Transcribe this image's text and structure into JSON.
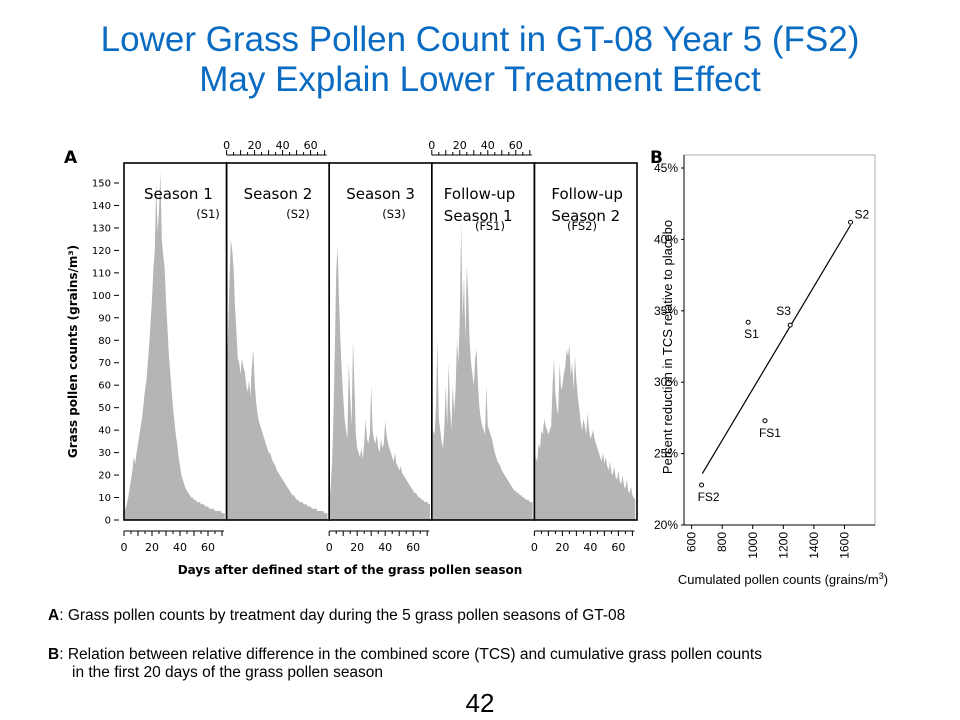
{
  "title": {
    "line1": "Lower Grass Pollen Count in GT-08 Year 5 (FS2)",
    "line2": "May Explain Lower Treatment Effect"
  },
  "colors": {
    "title": "#0a6bc2",
    "area_fill": "#b5b5b5",
    "frame": "#000000"
  },
  "chart_data": [
    {
      "panel_label": "A",
      "type": "area",
      "ylabel": "Grass pollen counts (grains/m³)",
      "xlabel": "Days after defined start of the grass pollen season",
      "yticks": [
        0,
        10,
        20,
        30,
        40,
        50,
        60,
        70,
        80,
        90,
        100,
        110,
        120,
        130,
        140,
        150
      ],
      "ylim": [
        0,
        155
      ],
      "xticks": [
        0,
        20,
        40,
        60
      ],
      "xlim": [
        0,
        73
      ],
      "grid": false,
      "series": [
        {
          "name": "Season 1",
          "code": "(S1)",
          "label": [
            "Season 1"
          ],
          "values": [
            3,
            5,
            7,
            10,
            14,
            18,
            22,
            28,
            25,
            30,
            34,
            38,
            42,
            46,
            52,
            58,
            62,
            70,
            78,
            88,
            98,
            112,
            120,
            150,
            128,
            138,
            155,
            125,
            118,
            112,
            98,
            86,
            74,
            66,
            58,
            50,
            44,
            38,
            34,
            28,
            24,
            20,
            18,
            16,
            14,
            13,
            12,
            11,
            10,
            10,
            9,
            9,
            8,
            8,
            8,
            7,
            7,
            7,
            6,
            6,
            6,
            5,
            5,
            5,
            5,
            4,
            4,
            4,
            4,
            4,
            3,
            3,
            3
          ]
        },
        {
          "name": "Season 2",
          "code": "(S2)",
          "label": [
            "Season 2"
          ],
          "values": [
            62,
            82,
            105,
            125,
            120,
            112,
            95,
            84,
            72,
            70,
            65,
            72,
            68,
            66,
            60,
            57,
            62,
            55,
            68,
            76,
            62,
            53,
            48,
            44,
            42,
            40,
            38,
            36,
            34,
            32,
            30,
            30,
            28,
            26,
            25,
            24,
            22,
            21,
            20,
            19,
            18,
            17,
            16,
            15,
            14,
            13,
            12,
            11,
            11,
            10,
            9,
            9,
            8,
            8,
            8,
            7,
            7,
            7,
            6,
            6,
            6,
            5,
            5,
            5,
            5,
            4,
            4,
            4,
            4,
            4,
            3,
            3,
            3
          ]
        },
        {
          "name": "Season 3",
          "code": "(S3)",
          "label": [
            "Season 3"
          ],
          "values": [
            8,
            14,
            25,
            45,
            75,
            110,
            122,
            98,
            80,
            66,
            55,
            45,
            40,
            36,
            70,
            55,
            42,
            80,
            60,
            38,
            32,
            30,
            28,
            32,
            27,
            34,
            45,
            36,
            34,
            38,
            60,
            40,
            36,
            34,
            38,
            32,
            30,
            36,
            32,
            34,
            44,
            38,
            34,
            32,
            30,
            28,
            26,
            30,
            25,
            24,
            22,
            24,
            21,
            20,
            19,
            18,
            17,
            16,
            15,
            14,
            13,
            12,
            12,
            11,
            10,
            10,
            9,
            9,
            8,
            8,
            8,
            7,
            7
          ]
        },
        {
          "name": "Follow-up Season 1",
          "code": "(FS1)",
          "label": [
            "Follow-up",
            "Season 1"
          ],
          "values": [
            30,
            40,
            38,
            50,
            80,
            45,
            40,
            35,
            32,
            42,
            60,
            42,
            70,
            50,
            40,
            60,
            48,
            58,
            80,
            70,
            90,
            132,
            90,
            108,
            80,
            113,
            100,
            80,
            70,
            65,
            60,
            72,
            76,
            60,
            50,
            45,
            42,
            40,
            38,
            60,
            42,
            40,
            38,
            36,
            33,
            30,
            28,
            26,
            25,
            24,
            22,
            21,
            20,
            19,
            18,
            17,
            16,
            15,
            14,
            13,
            13,
            12,
            12,
            11,
            11,
            10,
            10,
            9,
            9,
            9,
            8,
            8,
            8
          ]
        },
        {
          "name": "Follow-up Season 2",
          "code": "(FS2)",
          "label": [
            "Follow-up",
            "Season 2"
          ],
          "values": [
            30,
            28,
            26,
            34,
            32,
            40,
            38,
            45,
            42,
            40,
            38,
            40,
            42,
            60,
            72,
            56,
            50,
            47,
            70,
            58,
            60,
            65,
            68,
            76,
            73,
            78,
            64,
            70,
            58,
            73,
            62,
            55,
            50,
            44,
            40,
            45,
            42,
            38,
            48,
            40,
            36,
            38,
            40,
            36,
            34,
            32,
            30,
            28,
            26,
            30,
            25,
            28,
            24,
            22,
            26,
            21,
            20,
            24,
            19,
            18,
            22,
            17,
            16,
            20,
            15,
            14,
            18,
            13,
            12,
            15,
            11,
            10,
            9
          ]
        }
      ]
    },
    {
      "panel_label": "B",
      "type": "scatter",
      "xlabel": "Cumulated pollen counts (grains/m",
      "xlabel_sup": "3",
      "xlabel_close": ")",
      "ylabel": "Percent reduction in TCS relative to placebo",
      "xticks": [
        600,
        800,
        1000,
        1200,
        1400,
        1600
      ],
      "xlim": [
        550,
        1800
      ],
      "yticks": [
        "20%",
        "25%",
        "30%",
        "35%",
        "40%",
        "45%"
      ],
      "ylim": [
        20,
        45
      ],
      "points": [
        {
          "label": "S2",
          "x": 1640,
          "y": 41.2
        },
        {
          "label": "S1",
          "x": 970,
          "y": 34.2
        },
        {
          "label": "S3",
          "x": 1245,
          "y": 34.0
        },
        {
          "label": "FS1",
          "x": 1080,
          "y": 27.3
        },
        {
          "label": "FS2",
          "x": 665,
          "y": 22.8
        }
      ],
      "trendline": {
        "x": [
          670,
          1640
        ],
        "y": [
          23.6,
          41.0
        ]
      }
    }
  ],
  "notes": {
    "a_key": "A",
    "a_text": ": Grass pollen counts by treatment day during the 5 grass pollen seasons of GT-08",
    "b_key": "B",
    "b_text": ": Relation between relative difference in the combined score (TCS) and cumulative grass pollen counts",
    "b_text_line2": "in the first 20 days of the grass pollen season"
  },
  "page_number": "42"
}
